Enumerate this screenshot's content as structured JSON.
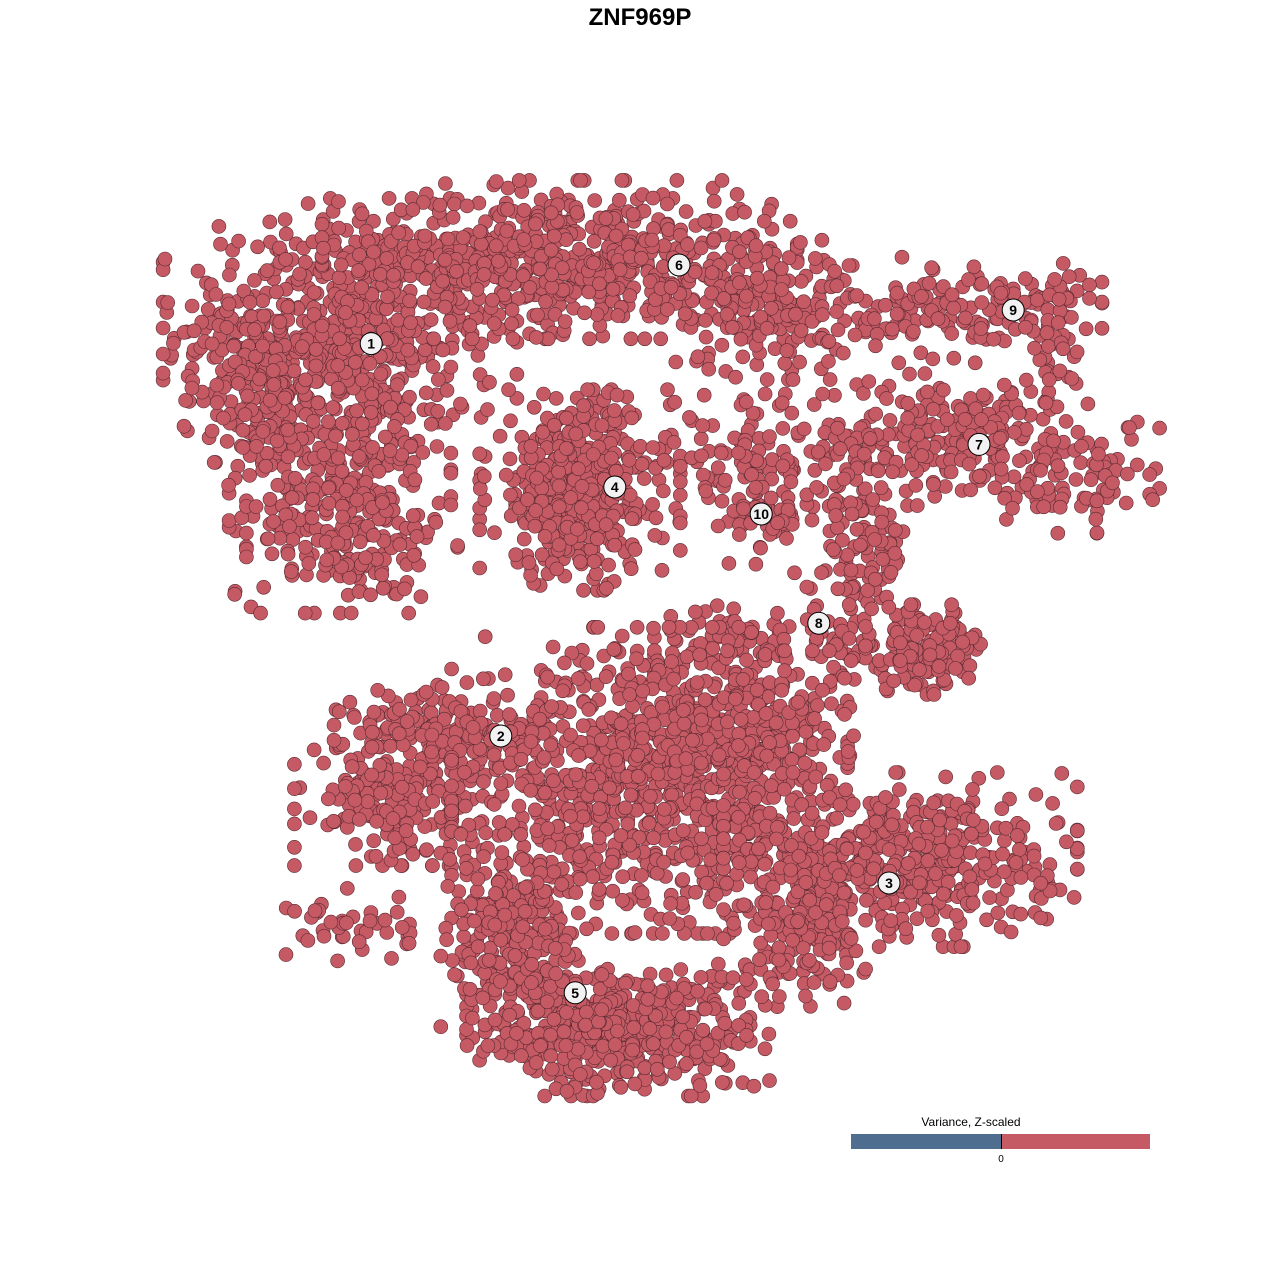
{
  "chart_data": {
    "type": "scatter",
    "title": "ZNF969P",
    "xlabel": "",
    "ylabel": "",
    "grid": false,
    "axes_visible": false,
    "xlim": [
      -40,
      40
    ],
    "ylim": [
      -40,
      40
    ],
    "point_color": "#c55a65",
    "point_edge_color": "#5a2a30",
    "clusters": [
      {
        "label": "1",
        "x": -22.4,
        "y": 24.7
      },
      {
        "label": "2",
        "x": -11.6,
        "y": -8.0
      },
      {
        "label": "3",
        "x": 20.75,
        "y": -20.25
      },
      {
        "label": "4",
        "x": -2.1,
        "y": 12.75
      },
      {
        "label": "5",
        "x": -5.4,
        "y": -29.4
      },
      {
        "label": "6",
        "x": 3.25,
        "y": 31.25
      },
      {
        "label": "7",
        "x": 28.25,
        "y": 16.3
      },
      {
        "label": "8",
        "x": 14.9,
        "y": 1.4
      },
      {
        "label": "9",
        "x": 31.1,
        "y": 27.5
      },
      {
        "label": "10",
        "x": 10.1,
        "y": 10.5
      }
    ],
    "point_groups": [
      {
        "cluster": "1",
        "center": [
          -25,
          25.8
        ],
        "spread": [
          6.7,
          5
        ],
        "n": 500
      },
      {
        "cluster": "1",
        "center": [
          -25,
          15
        ],
        "spread": [
          4.2,
          5.8
        ],
        "n": 300
      },
      {
        "cluster": "1",
        "center": [
          -32.5,
          21.7
        ],
        "spread": [
          2.5,
          4
        ],
        "n": 120
      },
      {
        "cluster": "1",
        "center": [
          -24,
          8.3
        ],
        "spread": [
          4,
          2.5
        ],
        "n": 120
      },
      {
        "cluster": "6",
        "center": [
          -6.7,
          31.7
        ],
        "spread": [
          9,
          3
        ],
        "n": 600
      },
      {
        "cluster": "6",
        "center": [
          10,
          28.3
        ],
        "spread": [
          4,
          3
        ],
        "n": 200
      },
      {
        "cluster": "9",
        "center": [
          27.5,
          27.5
        ],
        "spread": [
          5,
          2
        ],
        "n": 150
      },
      {
        "cluster": "9",
        "center": [
          34.6,
          25
        ],
        "spread": [
          1.3,
          3
        ],
        "n": 40
      },
      {
        "cluster": "7",
        "center": [
          26.7,
          16.7
        ],
        "spread": [
          6.7,
          2.5
        ],
        "n": 250
      },
      {
        "cluster": "7",
        "center": [
          36.7,
          13.3
        ],
        "spread": [
          3,
          2
        ],
        "n": 60
      },
      {
        "cluster": "4",
        "center": [
          -5,
          12.5
        ],
        "spread": [
          3.8,
          3.8
        ],
        "n": 450
      },
      {
        "cluster": "10",
        "center": [
          9.2,
          15
        ],
        "spread": [
          3.3,
          2.5
        ],
        "n": 100
      },
      {
        "cluster": "10",
        "center": [
          10.4,
          10
        ],
        "spread": [
          1.5,
          2
        ],
        "n": 40
      },
      {
        "cluster": "8",
        "center": [
          18.3,
          8.3
        ],
        "spread": [
          2,
          4
        ],
        "n": 120
      },
      {
        "cluster": "8",
        "center": [
          23.3,
          -0.8
        ],
        "spread": [
          3,
          1.7
        ],
        "n": 150
      },
      {
        "cluster": "8",
        "center": [
          10,
          0
        ],
        "spread": [
          4,
          1.3
        ],
        "n": 80
      },
      {
        "cluster": "2",
        "center": [
          -20,
          -13.3
        ],
        "spread": [
          4,
          2.5
        ],
        "n": 200
      },
      {
        "cluster": "2",
        "center": [
          -16.7,
          -7.5
        ],
        "spread": [
          4,
          1.7
        ],
        "n": 150
      },
      {
        "cluster": "2",
        "center": [
          -24,
          -24
        ],
        "spread": [
          2.5,
          1.5
        ],
        "n": 40
      },
      {
        "cluster": "5",
        "center": [
          0.8,
          -11.7
        ],
        "spread": [
          7.5,
          5.8
        ],
        "n": 900
      },
      {
        "cluster": "3",
        "center": [
          9,
          -7.5
        ],
        "spread": [
          4,
          3
        ],
        "n": 200
      },
      {
        "cluster": "3",
        "center": [
          21.7,
          -18.3
        ],
        "spread": [
          6.7,
          3.3
        ],
        "n": 500
      },
      {
        "cluster": "3",
        "center": [
          13.3,
          -23.3
        ],
        "spread": [
          2.5,
          3.3
        ],
        "n": 150
      },
      {
        "cluster": "5",
        "center": [
          -1.7,
          -32.5
        ],
        "spread": [
          5.8,
          2.5
        ],
        "n": 500
      },
      {
        "cluster": "5",
        "center": [
          -10,
          -25
        ],
        "spread": [
          3,
          4
        ],
        "n": 250
      }
    ],
    "legend": {
      "title": "Variance, Z-scaled",
      "tick_label": "0",
      "low_color": "#4f6d8f",
      "high_color": "#c55a65",
      "placement": "bottom-right"
    }
  }
}
